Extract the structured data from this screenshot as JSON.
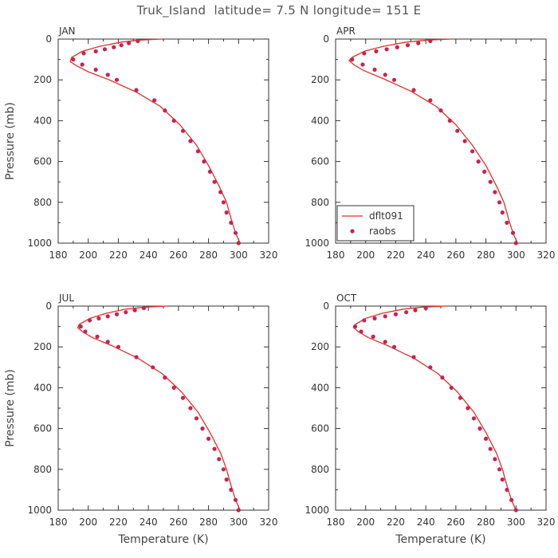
{
  "title": "Truk_Island  latitude= 7.5 N longitude= 151 E",
  "legend": {
    "model_label": "dflt091",
    "obs_label": "raobs"
  },
  "colors": {
    "model": "#e0302a",
    "obs": "#c42454",
    "axis": "#333333"
  },
  "chart_data": [
    {
      "type": "line",
      "panel_title": "JAN",
      "xlabel": "",
      "ylabel": "Pressure (mb)",
      "xlim": [
        180,
        320
      ],
      "ylim": [
        1000,
        0
      ],
      "xticks": [
        180,
        200,
        220,
        240,
        260,
        280,
        300,
        320
      ],
      "yticks": [
        0,
        200,
        400,
        600,
        800,
        1000
      ],
      "series": [
        {
          "name": "dflt091",
          "style": "line",
          "temperature": [
            249,
            234,
            222,
            208,
            196,
            189,
            188,
            192,
            200,
            214,
            232,
            248,
            261,
            272,
            280,
            287,
            292,
            295,
            298,
            301
          ],
          "pressure": [
            0,
            5,
            15,
            35,
            60,
            90,
            110,
            130,
            160,
            200,
            260,
            330,
            420,
            520,
            620,
            720,
            800,
            880,
            950,
            1000
          ]
        },
        {
          "name": "raobs",
          "style": "points",
          "temperature": [
            233,
            227,
            222,
            217,
            211,
            205,
            197,
            190,
            196,
            205,
            213,
            219,
            232,
            244,
            251,
            257,
            263,
            268,
            273,
            277,
            281,
            284,
            288,
            290,
            292,
            295,
            298,
            300
          ],
          "pressure": [
            10,
            20,
            30,
            40,
            50,
            60,
            70,
            100,
            125,
            150,
            175,
            200,
            250,
            300,
            350,
            400,
            450,
            500,
            550,
            600,
            650,
            700,
            750,
            800,
            850,
            900,
            950,
            1000
          ]
        }
      ]
    },
    {
      "type": "line",
      "panel_title": "APR",
      "xlabel": "",
      "ylabel": "",
      "xlim": [
        180,
        320
      ],
      "ylim": [
        1000,
        0
      ],
      "xticks": [
        180,
        200,
        220,
        240,
        260,
        280,
        300,
        320
      ],
      "yticks": [
        0,
        200,
        400,
        600,
        800,
        1000
      ],
      "series": [
        {
          "name": "dflt091",
          "style": "line",
          "temperature": [
            257,
            241,
            227,
            212,
            199,
            191,
            189,
            192,
            199,
            212,
            230,
            247,
            260,
            271,
            280,
            287,
            292,
            295,
            298,
            301
          ],
          "pressure": [
            0,
            5,
            15,
            35,
            60,
            90,
            105,
            125,
            155,
            195,
            255,
            330,
            420,
            520,
            620,
            720,
            800,
            880,
            950,
            1000
          ]
        },
        {
          "name": "raobs",
          "style": "points",
          "temperature": [
            243,
            235,
            228,
            221,
            214,
            207,
            199,
            191,
            198,
            206,
            213,
            219,
            232,
            243,
            250,
            256,
            261,
            266,
            271,
            275,
            279,
            283,
            286,
            289,
            291,
            294,
            298,
            300
          ],
          "pressure": [
            10,
            20,
            30,
            40,
            50,
            60,
            70,
            100,
            125,
            150,
            175,
            200,
            250,
            300,
            350,
            400,
            450,
            500,
            550,
            600,
            650,
            700,
            750,
            800,
            850,
            900,
            950,
            1000
          ]
        }
      ]
    },
    {
      "type": "line",
      "panel_title": "JUL",
      "xlabel": "Temperature (K)",
      "ylabel": "Pressure (mb)",
      "xlim": [
        180,
        320
      ],
      "ylim": [
        1000,
        0
      ],
      "xticks": [
        180,
        200,
        220,
        240,
        260,
        280,
        300,
        320
      ],
      "yticks": [
        0,
        200,
        400,
        600,
        800,
        1000
      ],
      "series": [
        {
          "name": "dflt091",
          "style": "line",
          "temperature": [
            252,
            238,
            225,
            212,
            201,
            194,
            193,
            196,
            203,
            216,
            233,
            249,
            262,
            273,
            281,
            288,
            292,
            295,
            298,
            301
          ],
          "pressure": [
            0,
            5,
            15,
            35,
            60,
            90,
            105,
            125,
            155,
            195,
            255,
            330,
            420,
            520,
            620,
            720,
            800,
            880,
            950,
            1000
          ]
        },
        {
          "name": "raobs",
          "style": "points",
          "temperature": [
            237,
            231,
            225,
            219,
            213,
            207,
            201,
            195,
            198,
            206,
            213,
            220,
            232,
            243,
            251,
            257,
            263,
            268,
            272,
            276,
            280,
            284,
            287,
            290,
            292,
            295,
            298,
            300
          ],
          "pressure": [
            10,
            20,
            30,
            40,
            50,
            60,
            70,
            100,
            125,
            150,
            175,
            200,
            250,
            300,
            350,
            400,
            450,
            500,
            550,
            600,
            650,
            700,
            750,
            800,
            850,
            900,
            950,
            1000
          ]
        }
      ]
    },
    {
      "type": "line",
      "panel_title": "OCT",
      "xlabel": "Temperature (K)",
      "ylabel": "",
      "xlim": [
        180,
        320
      ],
      "ylim": [
        1000,
        0
      ],
      "xticks": [
        180,
        200,
        220,
        240,
        260,
        280,
        300,
        320
      ],
      "yticks": [
        0,
        200,
        400,
        600,
        800,
        1000
      ],
      "series": [
        {
          "name": "dflt091",
          "style": "line",
          "temperature": [
            253,
            238,
            225,
            211,
            200,
            193,
            192,
            195,
            202,
            215,
            232,
            248,
            261,
            272,
            280,
            287,
            291,
            294,
            297,
            300
          ],
          "pressure": [
            0,
            5,
            15,
            35,
            60,
            90,
            105,
            125,
            155,
            195,
            255,
            330,
            420,
            520,
            620,
            720,
            800,
            880,
            950,
            1000
          ]
        },
        {
          "name": "raobs",
          "style": "points",
          "temperature": [
            240,
            233,
            227,
            220,
            213,
            206,
            199,
            193,
            197,
            205,
            213,
            219,
            232,
            243,
            251,
            257,
            263,
            268,
            272,
            276,
            280,
            283,
            286,
            289,
            291,
            294,
            297,
            300
          ],
          "pressure": [
            10,
            20,
            30,
            40,
            50,
            60,
            70,
            100,
            125,
            150,
            175,
            200,
            250,
            300,
            350,
            400,
            450,
            500,
            550,
            600,
            650,
            700,
            750,
            800,
            850,
            900,
            950,
            1000
          ]
        }
      ]
    }
  ]
}
